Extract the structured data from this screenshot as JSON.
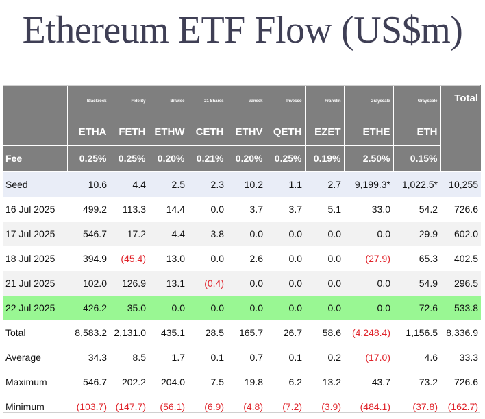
{
  "title": "Ethereum ETF Flow (US$m)",
  "colors": {
    "header_bg": "#7f7f7f",
    "seed_row_bg": "#e9edf7",
    "highlight_row_bg": "#99f793",
    "negative_text": "#e0242b",
    "title_text": "#3f3f55"
  },
  "table": {
    "issuers": [
      "Blackrock",
      "Fidelity",
      "Bitwise",
      "21 Shares",
      "Vaneck",
      "Invesco",
      "Franklin",
      "Grayscale",
      "Grayscale"
    ],
    "total_label": "Total",
    "tickers": [
      "ETHA",
      "FETH",
      "ETHW",
      "CETH",
      "ETHV",
      "QETH",
      "EZET",
      "ETHE",
      "ETH"
    ],
    "fee_label": "Fee",
    "fees": [
      "0.25%",
      "0.25%",
      "0.20%",
      "0.21%",
      "0.20%",
      "0.25%",
      "0.19%",
      "2.50%",
      "0.15%"
    ],
    "rows": [
      {
        "label": "Seed",
        "values": [
          "10.6",
          "4.4",
          "2.5",
          "2.3",
          "10.2",
          "1.1",
          "2.7",
          "9,199.3*",
          "1,022.5*",
          "10,255"
        ]
      },
      {
        "label": "16 Jul 2025",
        "values": [
          "499.2",
          "113.3",
          "14.4",
          "0.0",
          "3.7",
          "3.7",
          "5.1",
          "33.0",
          "54.2",
          "726.6"
        ]
      },
      {
        "label": "17 Jul 2025",
        "values": [
          "546.7",
          "17.2",
          "4.4",
          "3.8",
          "0.0",
          "0.0",
          "0.0",
          "0.0",
          "29.9",
          "602.0"
        ]
      },
      {
        "label": "18 Jul 2025",
        "values": [
          "394.9",
          "(45.4)",
          "13.0",
          "0.0",
          "2.6",
          "0.0",
          "0.0",
          "(27.9)",
          "65.3",
          "402.5"
        ]
      },
      {
        "label": "21 Jul 2025",
        "values": [
          "102.0",
          "126.9",
          "13.1",
          "(0.4)",
          "0.0",
          "0.0",
          "0.0",
          "0.0",
          "54.9",
          "296.5"
        ]
      },
      {
        "label": "22 Jul 2025",
        "values": [
          "426.2",
          "35.0",
          "0.0",
          "0.0",
          "0.0",
          "0.0",
          "0.0",
          "0.0",
          "72.6",
          "533.8"
        ]
      },
      {
        "label": "Total",
        "values": [
          "8,583.2",
          "2,131.0",
          "435.1",
          "28.5",
          "165.7",
          "26.7",
          "58.6",
          "(4,248.4)",
          "1,156.5",
          "8,336.9"
        ]
      },
      {
        "label": "Average",
        "values": [
          "34.3",
          "8.5",
          "1.7",
          "0.1",
          "0.7",
          "0.1",
          "0.2",
          "(17.0)",
          "4.6",
          "33.3"
        ]
      },
      {
        "label": "Maximum",
        "values": [
          "546.7",
          "202.2",
          "204.0",
          "7.5",
          "19.8",
          "6.2",
          "13.2",
          "43.7",
          "73.2",
          "726.6"
        ]
      },
      {
        "label": "Minimum",
        "values": [
          "(103.7)",
          "(147.7)",
          "(56.1)",
          "(6.9)",
          "(4.8)",
          "(7.2)",
          "(3.9)",
          "(484.1)",
          "(37.8)",
          "(162.7)"
        ]
      }
    ]
  }
}
